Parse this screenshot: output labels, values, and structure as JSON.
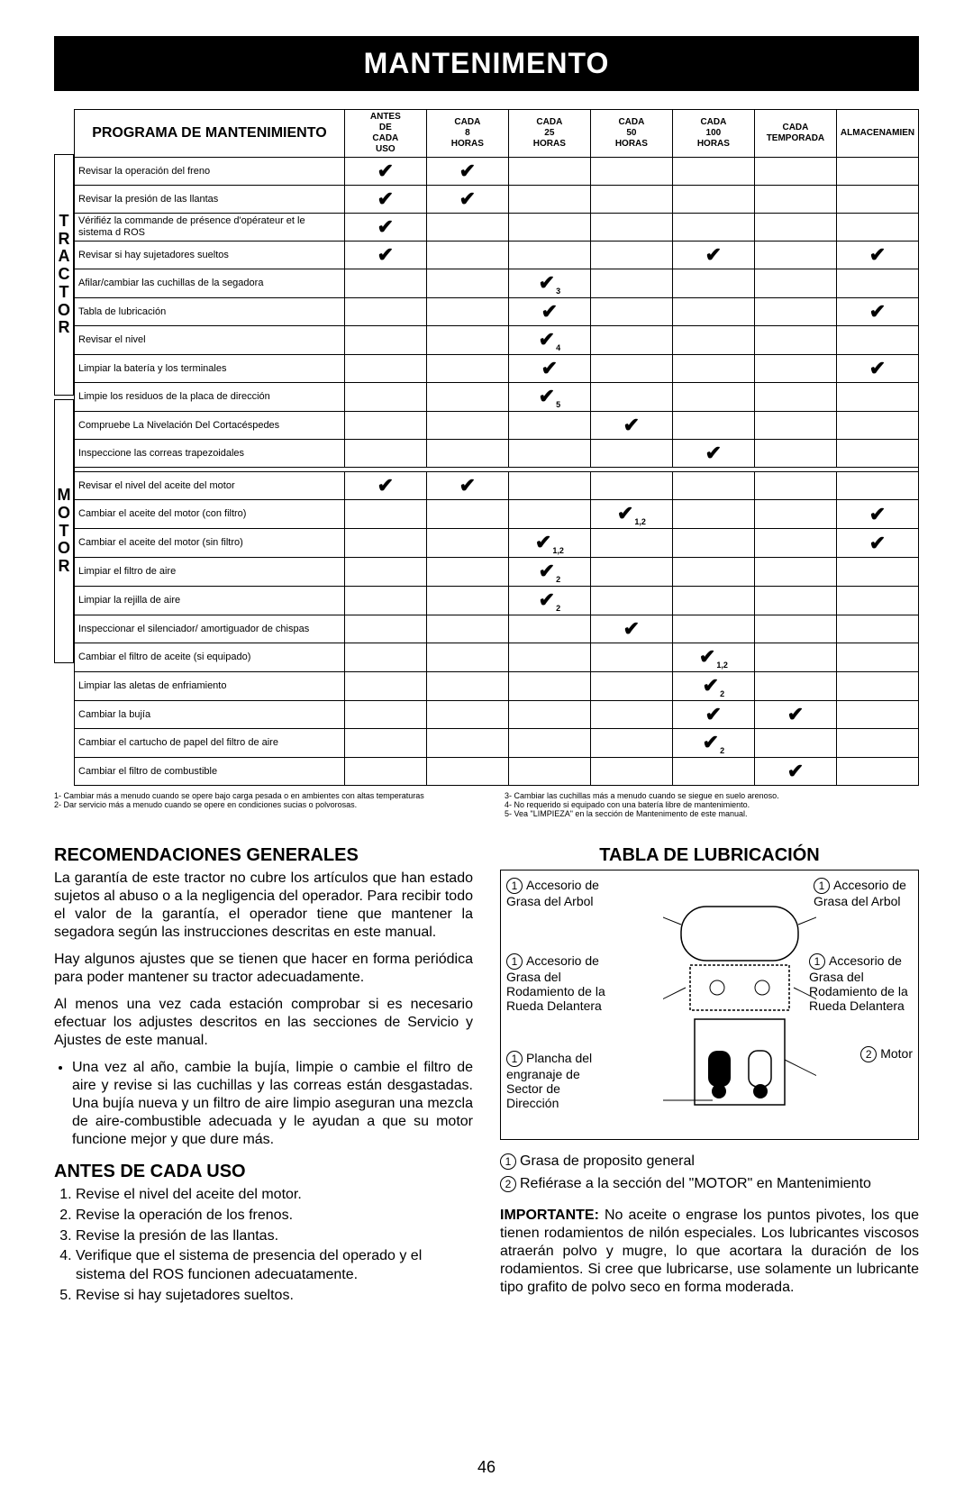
{
  "title": "MANTENIMENTO",
  "page_number": "46",
  "table": {
    "header_program": "PROGRAMA DE MANTENIMIENTO",
    "columns": [
      "ANTES DE CADA USO",
      "CADA 8 HORAS",
      "CADA 25 HORAS",
      "CADA 50 HORAS",
      "CADA 100 HORAS",
      "CADA TEMPORADA",
      "ALMACENAMIEN"
    ],
    "side_tractor": "TRACTOR",
    "side_motor": "MOTOR",
    "tractor_rows": [
      {
        "task": "Revisar la operación del freno",
        "marks": [
          "v",
          "v",
          "",
          "",
          "",
          "",
          ""
        ]
      },
      {
        "task": "Revisar la presión de las llantas",
        "marks": [
          "v",
          "v",
          "",
          "",
          "",
          "",
          ""
        ]
      },
      {
        "task": "Vérifiéz la commande de présence d'opérateur et le sistema d ROS",
        "marks": [
          "v",
          "",
          "",
          "",
          "",
          "",
          ""
        ]
      },
      {
        "task": "Revisar si hay sujetadores sueltos",
        "marks": [
          "v",
          "",
          "",
          "",
          "v",
          "",
          "v"
        ]
      },
      {
        "task": "Afilar/cambiar las cuchillas de la segadora",
        "marks": [
          "",
          "",
          "v3",
          "",
          "",
          "",
          ""
        ]
      },
      {
        "task": "Tabla de lubricación",
        "marks": [
          "",
          "",
          "v",
          "",
          "",
          "",
          "v"
        ]
      },
      {
        "task": "Revisar el nivel",
        "marks": [
          "",
          "",
          "v4",
          "",
          "",
          "",
          ""
        ]
      },
      {
        "task": "Limpiar la batería y los terminales",
        "marks": [
          "",
          "",
          "v",
          "",
          "",
          "",
          "v"
        ]
      },
      {
        "task": "Limpie los residuos de la placa de dirección",
        "marks": [
          "",
          "",
          "v5",
          "",
          "",
          "",
          ""
        ]
      },
      {
        "task": "Compruebe La Nivelación Del Cortacéspedes",
        "marks": [
          "",
          "",
          "",
          "v",
          "",
          "",
          ""
        ]
      },
      {
        "task": "Inspeccione las correas trapezoidales",
        "marks": [
          "",
          "",
          "",
          "",
          "v",
          "",
          ""
        ]
      }
    ],
    "motor_rows": [
      {
        "task": "Revisar el nivel del aceite del motor",
        "marks": [
          "v",
          "v",
          "",
          "",
          "",
          "",
          ""
        ]
      },
      {
        "task": "Cambiar el aceite del motor (con filtro)",
        "marks": [
          "",
          "",
          "",
          "v1,2",
          "",
          "",
          "v"
        ]
      },
      {
        "task": "Cambiar el aceite del motor (sin filtro)",
        "marks": [
          "",
          "",
          "v1,2",
          "",
          "",
          "",
          "v"
        ]
      },
      {
        "task": "Limpiar el filtro de aire",
        "marks": [
          "",
          "",
          "v2",
          "",
          "",
          "",
          ""
        ]
      },
      {
        "task": "Limpiar la rejilla de aire",
        "marks": [
          "",
          "",
          "v2",
          "",
          "",
          "",
          ""
        ]
      },
      {
        "task": "Inspeccionar el silenciador/ amortiguador de chispas",
        "marks": [
          "",
          "",
          "",
          "v",
          "",
          "",
          ""
        ]
      },
      {
        "task": "Cambiar el filtro de aceite (si equipado)",
        "marks": [
          "",
          "",
          "",
          "",
          "v1,2",
          "",
          ""
        ]
      },
      {
        "task": "Limpiar las aletas de enfriamiento",
        "marks": [
          "",
          "",
          "",
          "",
          "v2",
          "",
          ""
        ]
      },
      {
        "task": "Cambiar la bujía",
        "marks": [
          "",
          "",
          "",
          "",
          "v",
          "v",
          ""
        ]
      },
      {
        "task": "Cambiar el cartucho de papel del filtro de aire",
        "marks": [
          "",
          "",
          "",
          "",
          "v2",
          "",
          ""
        ]
      },
      {
        "task": "Cambiar el filtro de combustible",
        "marks": [
          "",
          "",
          "",
          "",
          "",
          "v",
          ""
        ]
      }
    ]
  },
  "footnotes": {
    "left": [
      "1- Cambiar más a menudo cuando se opere bajo carga pesada o en ambientes con altas temperaturas",
      "2- Dar servicio más a menudo cuando se opere en condiciones sucias o polvorosas."
    ],
    "right": [
      "3- Cambiar las cuchillas más a menudo cuando se siegue en suelo arenoso.",
      "4- No requerido si equipado con una batería libre de mantenimiento.",
      "5- Vea \"LIMPIEZA\" en la sección de Mantenimento de este manual."
    ]
  },
  "recs": {
    "heading": "RECOMENDACIONES GENERALES",
    "p1": "La garantía de este tractor no cubre los artículos que han estado sujetos al abuso o a la negligencia del operador. Para recibir todo el valor de la garantía, el operador tiene que mantener la segadora según las instrucciones descritas en este manual.",
    "p2": "Hay algunos ajustes que se tienen que hacer en forma periódica para poder mantener su tractor adecuadamente.",
    "p3": "Al menos una vez cada estación comprobar si es necesario efectuar los adjustes descritos en las secciones de Servicio y Ajustes de este manual.",
    "bullet": "Una vez al año, cambie la bujía, limpie o cambie el filtro de aire y revise si las cuchillas y las correas están desgastadas. Una bujía nueva y un filtro de aire limpio aseguran una mezcla de aire-combustible adecuada y le ayudan a que su motor funcione mejor y que dure más."
  },
  "antes": {
    "heading": "ANTES DE CADA USO",
    "items": [
      "Revise el nivel del aceite del motor.",
      "Revise la operación de los frenos.",
      "Revise la presión de las llantas.",
      "Verifique que el sistema de presencia del operado y el sistema del ROS funcionen adecuatamente.",
      "Revise si hay sujetadores sueltos."
    ]
  },
  "lub": {
    "heading": "TABLA DE LUBRICACIÓN",
    "labels": {
      "arbol_l": "Accesorio de Grasa del Arbol",
      "arbol_r": "Accesorio de Grasa del Arbol",
      "rueda_l": "Accesorio de Grasa del Rodamiento de la Rueda Delantera",
      "rueda_r": "Accesorio de Grasa del Rodamiento de la Rueda Delantera",
      "plancha": "Plancha del engranaje de Sector de Dirección",
      "motor": "Motor"
    },
    "legend1": "Grasa de proposito general",
    "legend2": "Refiérase a la sección del \"MOTOR\" en Mantenimiento",
    "importante": "IMPORTANTE: No aceite o engrase los puntos pivotes, los que tienen rodamientos de nilón especiales. Los lubricantes viscosos atraerán polvo y mugre, lo que acortara la duración de los rodamientos. Si cree que lubricarse, use solamente un lubricante tipo grafito de polvo seco en forma moderada."
  }
}
